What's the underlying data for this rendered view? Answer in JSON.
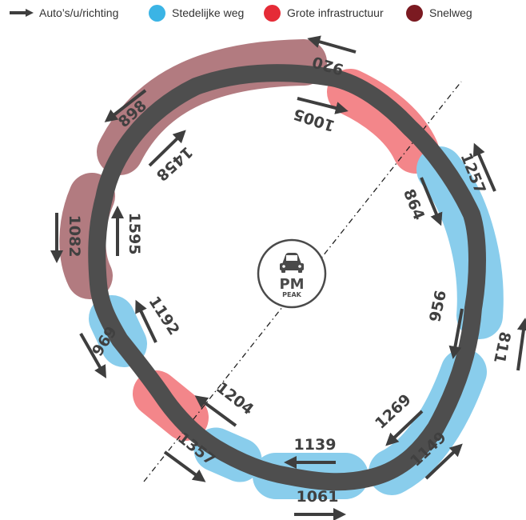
{
  "legend": {
    "direction_label": "Auto’s/u/richting",
    "urban_label": "Stedelijke weg",
    "infra_label": "Grote infrastructuur",
    "highway_label": "Snelweg"
  },
  "colors": {
    "urban": "#89cdec",
    "infra": "#f3868a",
    "highway": "#b27b80",
    "ring": "#4e4e4e",
    "arrow": "#3e3e3e",
    "legend_urban": "#3bb4e5",
    "legend_infra": "#e52b37",
    "legend_highway": "#7b1a21"
  },
  "badge": {
    "title": "PM",
    "subtitle": "PEAK",
    "icon": "car-icon"
  },
  "flows": {
    "f920": "920",
    "f1005": "1005",
    "f898": "898",
    "f1458": "1458",
    "f1082": "1082",
    "f1595": "1595",
    "f969": "969",
    "f1192": "1192",
    "f1204": "1204",
    "f1357": "1357",
    "f1139": "1139",
    "f1061": "1061",
    "f1269": "1269",
    "f1149": "1149",
    "f956": "956",
    "f811": "811",
    "f864": "864",
    "f1257": "1257"
  }
}
